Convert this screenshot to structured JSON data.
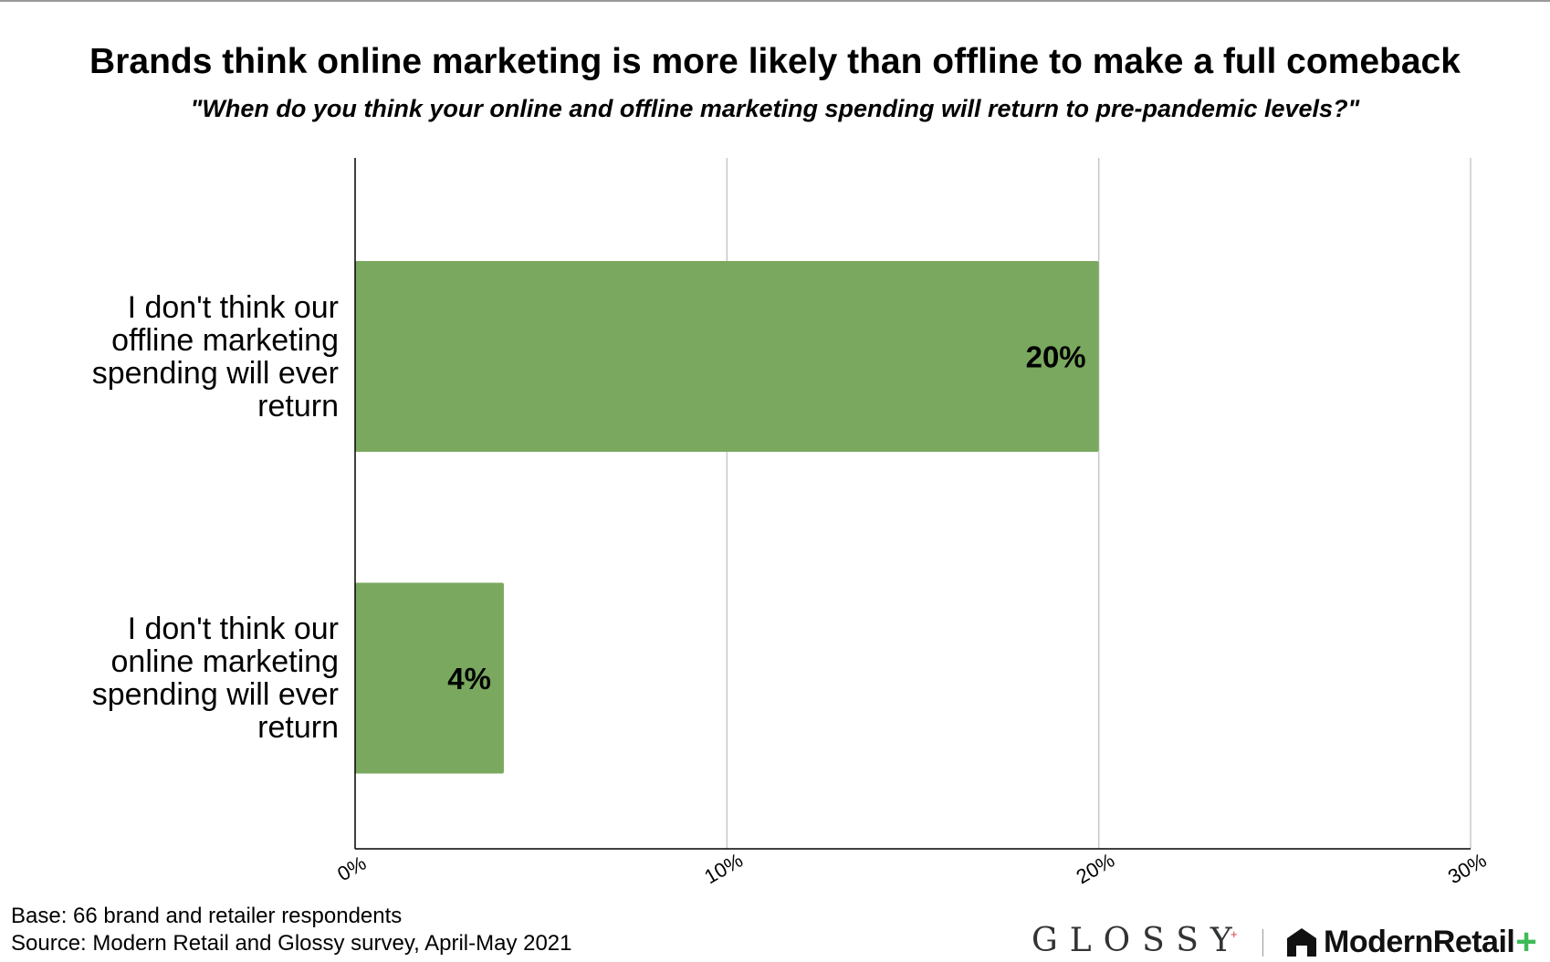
{
  "chart_data": {
    "type": "bar",
    "orientation": "horizontal",
    "title": "Brands think online marketing is more likely than offline to make a full comeback",
    "subtitle": "\"When do you think your online and offline marketing spending will return to pre-pandemic levels?\"",
    "categories": [
      "I don't think our offline marketing spending will ever return",
      "I don't think our online marketing spending will ever return"
    ],
    "category_lines": [
      [
        "I don't think our",
        "offline marketing",
        "spending will ever",
        "return"
      ],
      [
        "I don't think our",
        "online marketing",
        "spending will ever",
        "return"
      ]
    ],
    "values": [
      20,
      4
    ],
    "value_labels": [
      "20%",
      "4%"
    ],
    "x_ticks": [
      "0%",
      "10%",
      "20%",
      "30%"
    ],
    "xlim": [
      0,
      30
    ],
    "grid": true,
    "bar_color": "#79a85e"
  },
  "footer": {
    "base": "Base: 66 brand and retailer respondents",
    "source": "Source: Modern Retail and Glossy survey, April-May 2021"
  },
  "logos": {
    "glossy": "GLOSSY",
    "glossy_plus": "+",
    "modern_retail": "ModernRetail",
    "modern_retail_plus": "+",
    "glossy_plus_color": "#d33a3a",
    "modern_retail_plus_color": "#3dbb57"
  }
}
